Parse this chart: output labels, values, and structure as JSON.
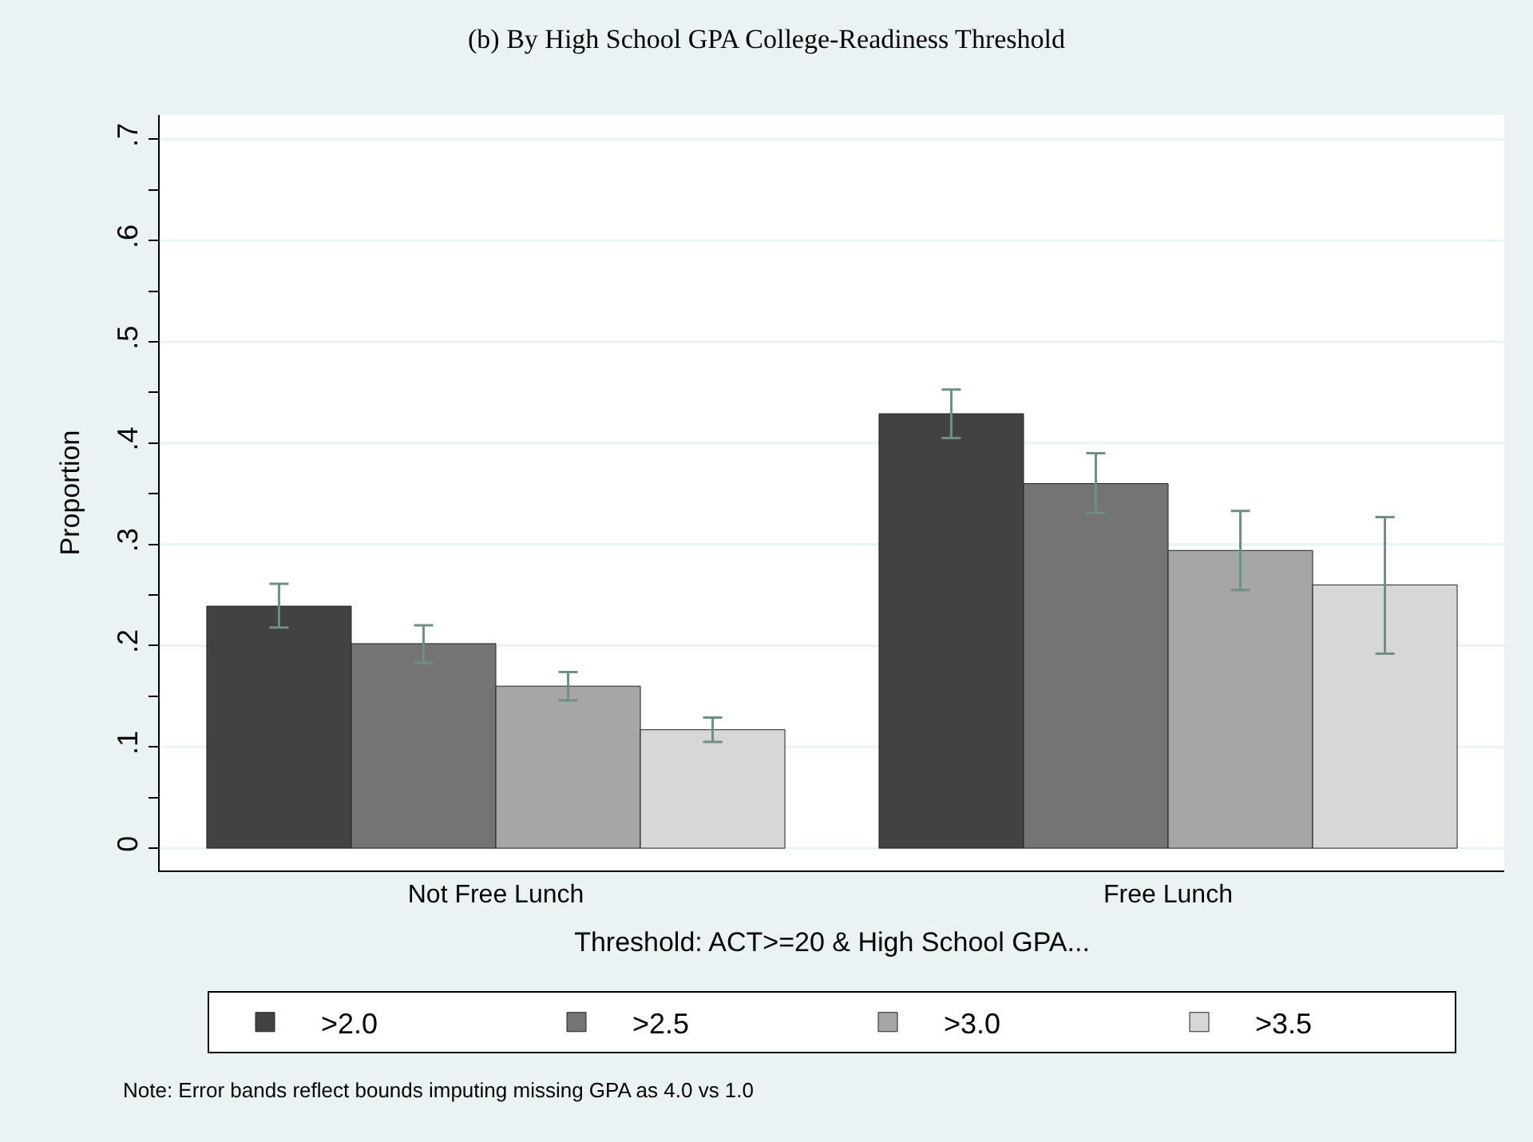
{
  "chart_data": {
    "type": "bar",
    "title": "(b) By High School GPA College-Readiness Threshold",
    "xlabel": "Threshold: ACT>=20 & High School GPA...",
    "ylabel": "Proportion",
    "categories": [
      "Not Free Lunch",
      "Free Lunch"
    ],
    "series": [
      {
        "name": ">2.0",
        "color": "#424242",
        "values": [
          0.239,
          0.429
        ],
        "errors": [
          [
            0.218,
            0.261
          ],
          [
            0.405,
            0.453
          ]
        ]
      },
      {
        "name": ">2.5",
        "color": "#747474",
        "values": [
          0.202,
          0.36
        ],
        "errors": [
          [
            0.183,
            0.22
          ],
          [
            0.331,
            0.39
          ]
        ]
      },
      {
        "name": ">3.0",
        "color": "#a6a6a6",
        "values": [
          0.16,
          0.294
        ],
        "errors": [
          [
            0.146,
            0.174
          ],
          [
            0.255,
            0.333
          ]
        ]
      },
      {
        "name": ">3.5",
        "color": "#d7d7d7",
        "values": [
          0.117,
          0.26
        ],
        "errors": [
          [
            0.105,
            0.129
          ],
          [
            0.192,
            0.327
          ]
        ]
      }
    ],
    "ylim": [
      -0.022,
      0.724
    ],
    "yticks": [
      {
        "value": 0,
        "label": "0"
      },
      {
        "value": 0.05,
        "label": null
      },
      {
        "value": 0.1,
        "label": ".1"
      },
      {
        "value": 0.15,
        "label": null
      },
      {
        "value": 0.2,
        "label": ".2"
      },
      {
        "value": 0.25,
        "label": null
      },
      {
        "value": 0.3,
        "label": ".3"
      },
      {
        "value": 0.35,
        "label": null
      },
      {
        "value": 0.4,
        "label": ".4"
      },
      {
        "value": 0.45,
        "label": null
      },
      {
        "value": 0.5,
        "label": ".5"
      },
      {
        "value": 0.55,
        "label": null
      },
      {
        "value": 0.6,
        "label": ".6"
      },
      {
        "value": 0.65,
        "label": null
      },
      {
        "value": 0.7,
        "label": ".7"
      }
    ],
    "grid": "y",
    "legend": "bottom",
    "annotations": [
      "Note: Error bands reflect bounds imputing missing GPA as 4.0 vs 1.0"
    ]
  }
}
